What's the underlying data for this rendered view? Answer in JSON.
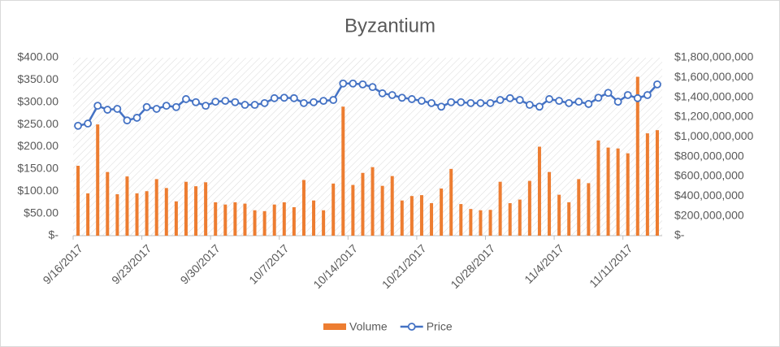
{
  "chart_data": {
    "type": "bar-line",
    "title": "Byzantium",
    "categories": [
      "9/16/2017",
      null,
      null,
      null,
      null,
      null,
      null,
      "9/23/2017",
      null,
      null,
      null,
      null,
      null,
      null,
      "9/30/2017",
      null,
      null,
      null,
      null,
      null,
      null,
      "10/7/2017",
      null,
      null,
      null,
      null,
      null,
      null,
      "10/14/2017",
      null,
      null,
      null,
      null,
      null,
      null,
      "10/21/2017",
      null,
      null,
      null,
      null,
      null,
      null,
      "10/28/2017",
      null,
      null,
      null,
      null,
      null,
      null,
      "11/4/2017",
      null,
      null,
      null,
      null,
      null,
      null,
      "11/11/2017",
      null,
      null,
      null
    ],
    "series": [
      {
        "name": "Volume",
        "type": "bar",
        "axis": "y2",
        "color": "#ed7d31",
        "values": [
          707000000,
          428000000,
          1125000000,
          644000000,
          419000000,
          599000000,
          428000000,
          450000000,
          572000000,
          482000000,
          347000000,
          545000000,
          500000000,
          540000000,
          338000000,
          315000000,
          338000000,
          324000000,
          257000000,
          248000000,
          315000000,
          338000000,
          288000000,
          563000000,
          356000000,
          257000000,
          527000000,
          1305000000,
          513000000,
          635000000,
          693000000,
          504000000,
          603000000,
          356000000,
          401000000,
          410000000,
          329000000,
          477000000,
          675000000,
          320000000,
          270000000,
          257000000,
          261000000,
          545000000,
          329000000,
          365000000,
          554000000,
          900000000,
          644000000,
          414000000,
          338000000,
          572000000,
          531000000,
          963000000,
          891000000,
          882000000,
          833000000,
          1607000000,
          1035000000,
          1067000000
        ]
      },
      {
        "name": "Price",
        "type": "line",
        "axis": "y",
        "color": "#4472c4",
        "values": [
          247,
          252,
          292,
          283,
          285,
          259,
          265,
          289,
          285,
          292,
          289,
          307,
          300,
          292,
          301,
          303,
          300,
          294,
          294,
          298,
          309,
          310,
          309,
          298,
          300,
          303,
          305,
          342,
          342,
          340,
          334,
          320,
          316,
          310,
          307,
          303,
          298,
          290,
          300,
          300,
          298,
          298,
          298,
          305,
          309,
          305,
          294,
          290,
          307,
          303,
          298,
          301,
          296,
          310,
          321,
          301,
          316,
          309,
          316,
          340
        ]
      }
    ],
    "ylim": [
      0,
      400
    ],
    "yticks": [
      {
        "value": 0,
        "label": "$-"
      },
      {
        "value": 50,
        "label": "$50.00"
      },
      {
        "value": 100,
        "label": "$100.00"
      },
      {
        "value": 150,
        "label": "$150.00"
      },
      {
        "value": 200,
        "label": "$200.00"
      },
      {
        "value": 250,
        "label": "$250.00"
      },
      {
        "value": 300,
        "label": "$300.00"
      },
      {
        "value": 350,
        "label": "$350.00"
      },
      {
        "value": 400,
        "label": "$400.00"
      }
    ],
    "y2lim": [
      0,
      1800000000
    ],
    "y2ticks": [
      {
        "value": 0,
        "label": "$-"
      },
      {
        "value": 200000000,
        "label": "$200,000,000"
      },
      {
        "value": 400000000,
        "label": "$400,000,000"
      },
      {
        "value": 600000000,
        "label": "$600,000,000"
      },
      {
        "value": 800000000,
        "label": "$800,000,000"
      },
      {
        "value": 1000000000,
        "label": "$1,000,000,000"
      },
      {
        "value": 1200000000,
        "label": "$1,200,000,000"
      },
      {
        "value": 1400000000,
        "label": "$1,400,000,000"
      },
      {
        "value": 1600000000,
        "label": "$1,600,000,000"
      },
      {
        "value": 1800000000,
        "label": "$1,800,000,000"
      }
    ],
    "legend": "bottom"
  }
}
